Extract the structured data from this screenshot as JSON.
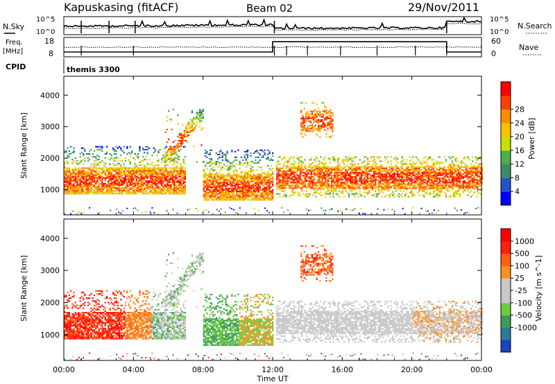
{
  "header": {
    "station": "Kapuskasing (fitACF)",
    "beam": "Beam 02",
    "date": "29/Nov/2011"
  },
  "colors": {
    "power_scale": [
      "#0000ff",
      "#2850c8",
      "#3c8c64",
      "#4cae4c",
      "#c8e000",
      "#ffc000",
      "#ff8c00",
      "#ff4000",
      "#ff0000"
    ],
    "velocity_scale": [
      "#2040c0",
      "#2e7a96",
      "#3c9a5a",
      "#6ccc3c",
      "#c8c8c8",
      "#c8c8c8",
      "#ff9020",
      "#ff6010",
      "#ff2010",
      "#ff0000"
    ],
    "ground_scatter": "#c0c0c0"
  },
  "chart_data": [
    {
      "type": "line",
      "name": "noise-panel",
      "left_label": "N.Sky",
      "right_label": "N.Search",
      "left_ticks": [
        "10^5",
        "10^0"
      ],
      "right_ticks": [
        "10^5",
        "10^0"
      ],
      "x_range": [
        "00:00",
        "24:00"
      ]
    },
    {
      "type": "line",
      "name": "frequency-panel",
      "left_label": "Freq.",
      "left_unit": "[MHz]",
      "right_label": "Nave",
      "left_ticks": [
        18,
        8
      ],
      "right_ticks": [
        60,
        0
      ],
      "ylim_freq": [
        8,
        18
      ],
      "ylim_nave": [
        0,
        60
      ],
      "x_range": [
        "00:00",
        "24:00"
      ]
    },
    {
      "type": "table",
      "name": "cpid-panel",
      "label": "CPID",
      "mode_label": "themis 3300"
    },
    {
      "type": "heatmap",
      "name": "power-panel",
      "ylabel": "Slant Range [km]",
      "yticks": [
        1000,
        2000,
        3000,
        4000
      ],
      "ylim": [
        200,
        4600
      ],
      "xlim": [
        0,
        24
      ],
      "colorbar_label": "Power [dB]",
      "colorbar_ticks": [
        4,
        8,
        12,
        16,
        20,
        24,
        28
      ]
    },
    {
      "type": "heatmap",
      "name": "velocity-panel",
      "ylabel": "Slant Range [km]",
      "yticks": [
        1000,
        2000,
        3000,
        4000
      ],
      "ylim": [
        200,
        4600
      ],
      "xlim": [
        0,
        24
      ],
      "colorbar_label": "Velocity [m s^-1]",
      "colorbar_ticks": [
        1000,
        500,
        100,
        25,
        -25,
        -100,
        -500,
        -1000
      ]
    }
  ],
  "xaxis": {
    "ticks": [
      "00:00",
      "04:00",
      "08:00",
      "12:00",
      "16:00",
      "20:00",
      "00:00"
    ],
    "label": "Time UT"
  }
}
